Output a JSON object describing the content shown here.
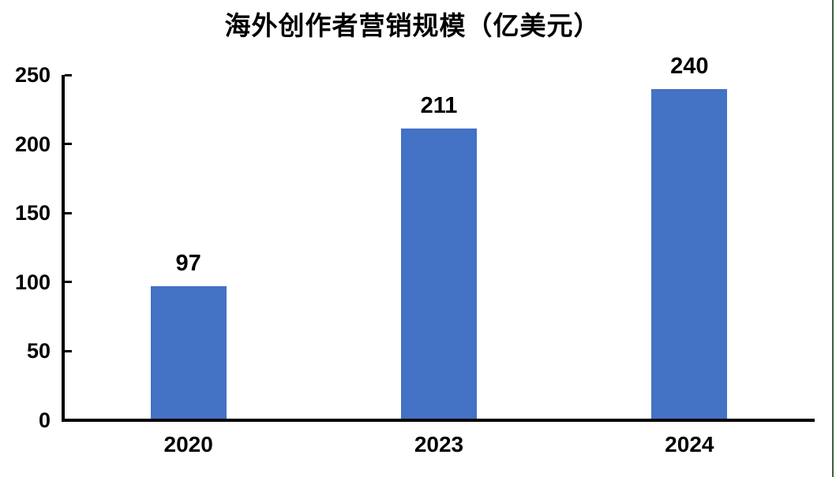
{
  "chart_data": {
    "type": "bar",
    "title": "海外创作者营销规模（亿美元）",
    "categories": [
      "2020",
      "2023",
      "2024"
    ],
    "values": [
      97,
      211,
      240
    ],
    "xlabel": "",
    "ylabel": "",
    "ylim": [
      0,
      250
    ],
    "yticks": [
      0,
      50,
      100,
      150,
      200,
      250
    ],
    "grid": false,
    "legend": "none",
    "data_labels": true,
    "colors": {
      "bar": "#4472C4",
      "axis": "#000000",
      "text": "#000000",
      "right_edge_border": "#3E5C40",
      "background": "#FFFFFF"
    }
  }
}
